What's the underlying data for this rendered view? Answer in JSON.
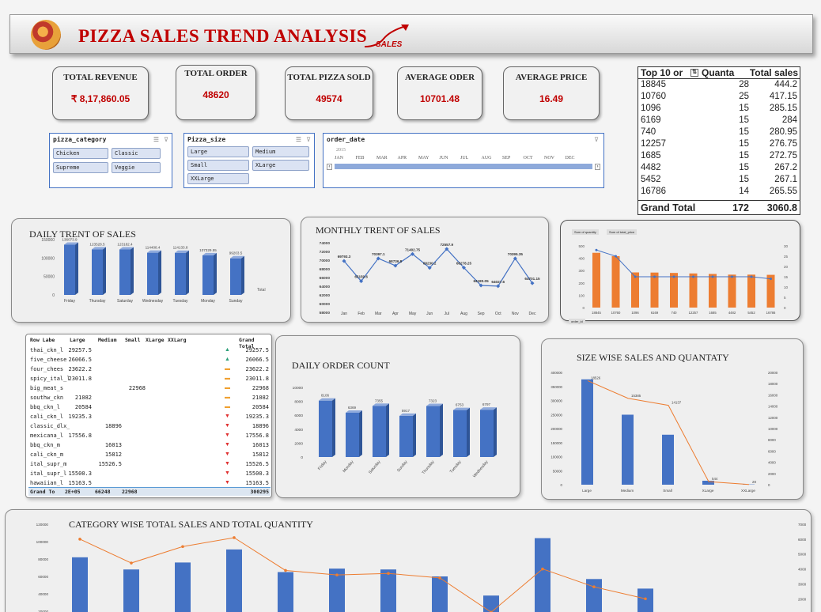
{
  "banner": {
    "title": "PIZZA SALES TREND ANALYSIS",
    "logo_text": "SALES"
  },
  "kpis": [
    {
      "label": "TOTAL REVENUE",
      "value": "₹ 8,17,860.05"
    },
    {
      "label": "TOTAL ORDER",
      "value": "48620"
    },
    {
      "label": "TOTAL PIZZA SOLD",
      "value": "49574"
    },
    {
      "label": "AVERAGE ODER",
      "value": "10701.48"
    },
    {
      "label": "AVERAGE PRICE",
      "value": "16.49"
    }
  ],
  "top10": {
    "headers": [
      "Top 10 or",
      "Quanta",
      "Total sales"
    ],
    "rows": [
      [
        "18845",
        "28",
        "444.2"
      ],
      [
        "10760",
        "25",
        "417.15"
      ],
      [
        "1096",
        "15",
        "285.15"
      ],
      [
        "6169",
        "15",
        "284"
      ],
      [
        "740",
        "15",
        "280.95"
      ],
      [
        "12257",
        "15",
        "276.75"
      ],
      [
        "1685",
        "15",
        "272.75"
      ],
      [
        "4482",
        "15",
        "267.2"
      ],
      [
        "5452",
        "15",
        "267.1"
      ],
      [
        "16786",
        "14",
        "265.55"
      ]
    ],
    "total": [
      "Grand Total",
      "172",
      "3060.8"
    ]
  },
  "slicers": {
    "category": {
      "title": "pizza_category",
      "items": [
        "Chicken",
        "Classic",
        "Supreme",
        "Veggie"
      ]
    },
    "size": {
      "title": "Pizza_size",
      "items": [
        "Large",
        "Medium",
        "Small",
        "XLarge",
        "XXLarge"
      ]
    },
    "timeline": {
      "title": "order_date",
      "year": "2015",
      "months": [
        "JAN",
        "FEB",
        "MAR",
        "APR",
        "MAY",
        "JUN",
        "JUL",
        "AUG",
        "SEP",
        "OCT",
        "NOV",
        "DEC"
      ]
    }
  },
  "daily": {
    "title": "DAILY TRENT OF SALES",
    "legend": "Total"
  },
  "monthly": {
    "title": "MONTHLY TRENT OF SALES"
  },
  "orders_chart": {
    "tabs": [
      "Sum of quantity",
      "Sum of total_price"
    ],
    "filter": "order_id"
  },
  "pivot": {
    "headers": [
      "Row Labe",
      "Large",
      "Medium",
      "Small",
      "XLarge",
      "XXLarg",
      "Grand Total"
    ],
    "rows": [
      [
        "thai_ckn_l",
        "29257.5",
        "",
        "",
        "",
        "",
        "29257.5",
        "up"
      ],
      [
        "five_cheese",
        "26066.5",
        "",
        "",
        "",
        "",
        "26066.5",
        "up"
      ],
      [
        "four_chees",
        "23622.2",
        "",
        "",
        "",
        "",
        "23622.2",
        "mid"
      ],
      [
        "spicy_ital_l",
        "23011.8",
        "",
        "",
        "",
        "",
        "23011.8",
        "mid"
      ],
      [
        "big_meat_s",
        "",
        "",
        "22968",
        "",
        "",
        "22968",
        "mid"
      ],
      [
        "southw_ckn",
        "21082",
        "",
        "",
        "",
        "",
        "21082",
        "mid"
      ],
      [
        "bbq_ckn_l",
        "20584",
        "",
        "",
        "",
        "",
        "20584",
        "mid"
      ],
      [
        "cali_ckn_l",
        "19235.3",
        "",
        "",
        "",
        "",
        "19235.3",
        "down"
      ],
      [
        "classic_dlx_m",
        "",
        "18896",
        "",
        "",
        "",
        "18896",
        "down"
      ],
      [
        "mexicana_l",
        "17556.8",
        "",
        "",
        "",
        "",
        "17556.8",
        "down"
      ],
      [
        "bbq_ckn_m",
        "",
        "16013",
        "",
        "",
        "",
        "16013",
        "down"
      ],
      [
        "cali_ckn_m",
        "",
        "15812",
        "",
        "",
        "",
        "15812",
        "down"
      ],
      [
        "ital_supr_m",
        "",
        "15526.5",
        "",
        "",
        "",
        "15526.5",
        "down"
      ],
      [
        "ital_supr_l",
        "15500.3",
        "",
        "",
        "",
        "",
        "15500.3",
        "down"
      ],
      [
        "hawaiian_l",
        "15163.5",
        "",
        "",
        "",
        "",
        "15163.5",
        "down"
      ]
    ],
    "total": [
      "Grand To",
      "2E+05",
      "66248",
      "22968",
      "",
      "",
      "300295"
    ]
  },
  "order_count": {
    "title": "DAILY ORDER COUNT"
  },
  "size_chart": {
    "title": "SIZE WISE SALES AND QUANTATY"
  },
  "category_chart": {
    "title": "CATEGORY WISE TOTAL SALES AND TOTAL QUANTITY"
  },
  "colors": {
    "bar_blue": "#4472c4",
    "orange": "#ed7d31",
    "kpi_value": "#c00000",
    "banner_title": "#c00000"
  },
  "chart_data": [
    {
      "id": "daily",
      "type": "bar",
      "categories": [
        "Friday",
        "Thursday",
        "Saturday",
        "Wednesday",
        "Tuesday",
        "Monday",
        "Sunday"
      ],
      "values": [
        136073.9,
        123528.5,
        123182.4,
        114408.4,
        114133.8,
        107329.55,
        99203.5
      ],
      "series": [
        {
          "name": "Total",
          "values": [
            136073.9,
            123528.5,
            123182.4,
            114408.4,
            114133.8,
            107329.55,
            99203.5
          ]
        }
      ],
      "ylim": [
        0,
        150000
      ],
      "yticks": [
        0,
        50000,
        100000,
        150000
      ]
    },
    {
      "id": "monthly",
      "type": "line",
      "categories": [
        "Jan",
        "Feb",
        "Mar",
        "Apr",
        "May",
        "Jun",
        "Jul",
        "Aug",
        "Sep",
        "Oct",
        "Nov",
        "Dec"
      ],
      "values": [
        69793.3,
        65159.6,
        70397.1,
        68736.8,
        71402.75,
        68230.2,
        72557.9,
        68278.25,
        64180.05,
        64027.6,
        70395.35,
        64701.15
      ],
      "ylim": [
        58000,
        74000
      ],
      "yticks": [
        58000,
        60000,
        62000,
        64000,
        66000,
        68000,
        70000,
        72000,
        74000
      ]
    },
    {
      "id": "top10_chart",
      "type": "bar",
      "categories": [
        "18845",
        "10760",
        "1096",
        "6169",
        "740",
        "12257",
        "1685",
        "4482",
        "5452",
        "16786"
      ],
      "series": [
        {
          "name": "Sum of total_price",
          "values": [
            444.2,
            417.15,
            285.15,
            284,
            280.95,
            276.75,
            272.75,
            267.2,
            267.1,
            265.55
          ]
        },
        {
          "name": "Sum of quantity",
          "values": [
            28,
            25,
            15,
            15,
            15,
            15,
            15,
            15,
            15,
            14
          ]
        }
      ],
      "ylim": [
        0,
        500
      ],
      "y2lim": [
        0,
        30
      ]
    },
    {
      "id": "order_count",
      "type": "bar",
      "categories": [
        "Friday",
        "Monday",
        "Saturday",
        "Sunday",
        "Thursday",
        "Tuesday",
        "Wednesday"
      ],
      "values": [
        8106,
        6369,
        7355,
        5917,
        7323,
        6753,
        6797
      ],
      "ylim": [
        0,
        10000
      ],
      "yticks": [
        0,
        2000,
        4000,
        6000,
        8000,
        10000
      ]
    },
    {
      "id": "size",
      "type": "bar",
      "categories": [
        "Large",
        "Medium",
        "Small",
        "XLarge",
        "XXLarge"
      ],
      "series": [
        {
          "name": "Sales",
          "values": [
            375318.7,
            249382.25,
            178076.5,
            14076,
            1006.6
          ]
        },
        {
          "name": "Quantity",
          "values": [
            18526,
            15385,
            14137,
            544,
            28
          ]
        }
      ],
      "ylim": [
        0,
        400000
      ],
      "y2lim": [
        0,
        20000
      ]
    },
    {
      "id": "category",
      "type": "bar",
      "series": [
        {
          "name": "Sales",
          "values": [
            82000,
            68000,
            76000,
            91000,
            65000,
            69000,
            68000,
            60000,
            38000,
            104000,
            57000,
            46000
          ]
        },
        {
          "name": "Quantity",
          "values": [
            6000,
            4400,
            5500,
            6100,
            3900,
            3600,
            3700,
            3400,
            1100,
            4000,
            2800,
            2000
          ]
        }
      ],
      "ylim": [
        0,
        120000
      ],
      "y2lim": [
        0,
        7000
      ]
    }
  ]
}
